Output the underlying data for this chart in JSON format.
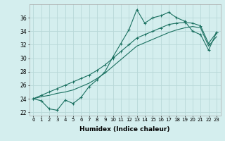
{
  "xlabel": "Humidex (Indice chaleur)",
  "background_color": "#d4eeee",
  "grid_color": "#b8d8d8",
  "line_color": "#1a7060",
  "x_values": [
    0,
    1,
    2,
    3,
    4,
    5,
    6,
    7,
    8,
    9,
    10,
    11,
    12,
    13,
    14,
    15,
    16,
    17,
    18,
    19,
    20,
    21,
    22,
    23
  ],
  "line1_y": [
    24.0,
    23.7,
    22.5,
    22.3,
    23.8,
    23.3,
    24.2,
    25.8,
    26.8,
    28.0,
    30.2,
    32.2,
    34.2,
    37.2,
    35.2,
    36.0,
    36.3,
    36.8,
    36.0,
    35.5,
    34.0,
    33.5,
    31.2,
    33.8
  ],
  "line2_y": [
    24.0,
    24.5,
    25.0,
    25.5,
    26.0,
    26.5,
    27.0,
    27.5,
    28.2,
    29.0,
    30.0,
    31.0,
    32.0,
    33.0,
    33.5,
    34.0,
    34.5,
    35.0,
    35.2,
    35.3,
    35.2,
    34.8,
    32.2,
    33.8
  ],
  "line3_y": [
    24.0,
    24.3,
    24.5,
    24.8,
    25.0,
    25.3,
    25.8,
    26.3,
    27.0,
    27.8,
    28.8,
    29.8,
    30.8,
    31.8,
    32.3,
    32.8,
    33.3,
    33.8,
    34.2,
    34.5,
    34.7,
    34.5,
    31.8,
    33.2
  ],
  "ylim": [
    21.5,
    38.0
  ],
  "xlim": [
    -0.5,
    23.5
  ],
  "yticks": [
    22,
    24,
    26,
    28,
    30,
    32,
    34,
    36
  ],
  "xticks": [
    0,
    1,
    2,
    3,
    4,
    5,
    6,
    7,
    8,
    9,
    10,
    11,
    12,
    13,
    14,
    15,
    16,
    17,
    18,
    19,
    20,
    21,
    22,
    23
  ]
}
